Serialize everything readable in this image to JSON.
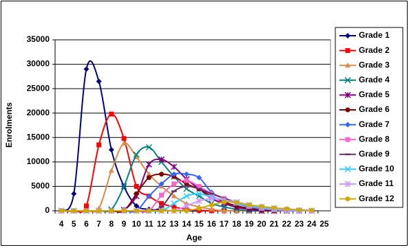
{
  "chart_data": {
    "type": "line",
    "smooth": true,
    "grid": true,
    "legend": "right",
    "x_label": "Age",
    "y_label": "Enrolments",
    "categories": [
      4,
      5,
      6,
      7,
      8,
      9,
      10,
      11,
      12,
      13,
      14,
      15,
      16,
      17,
      18,
      19,
      20,
      21,
      22,
      23,
      24,
      25
    ],
    "ylim": [
      0,
      35000
    ],
    "yticks": [
      0,
      5000,
      10000,
      15000,
      20000,
      25000,
      30000,
      35000
    ],
    "series": [
      {
        "name": "Grade 1",
        "color": "#000080",
        "marker": "diamond",
        "values": [
          0,
          3500,
          29000,
          26500,
          12500,
          5000,
          1000,
          300,
          100,
          0,
          0,
          0,
          0,
          0,
          0,
          0,
          0,
          0,
          0,
          0,
          0,
          null
        ]
      },
      {
        "name": "Grade 2",
        "color": "#ff0000",
        "marker": "square",
        "values": [
          0,
          0,
          1000,
          13500,
          19800,
          14800,
          5000,
          3000,
          1500,
          800,
          300,
          100,
          0,
          0,
          0,
          0,
          0,
          0,
          0,
          0,
          0,
          null
        ]
      },
      {
        "name": "Grade 3",
        "color": "#d98c4a",
        "marker": "triangle",
        "values": [
          0,
          0,
          0,
          500,
          8200,
          13800,
          11000,
          7500,
          5000,
          3000,
          1500,
          800,
          300,
          0,
          0,
          0,
          0,
          0,
          0,
          0,
          0,
          null
        ]
      },
      {
        "name": "Grade 4",
        "color": "#008080",
        "marker": "x",
        "values": [
          0,
          0,
          0,
          0,
          300,
          5000,
          11500,
          13000,
          10000,
          7000,
          4500,
          3000,
          1500,
          800,
          300,
          0,
          0,
          0,
          0,
          0,
          0,
          null
        ]
      },
      {
        "name": "Grade 5",
        "color": "#800080",
        "marker": "star",
        "values": [
          0,
          0,
          0,
          0,
          0,
          200,
          3000,
          9500,
          10500,
          9000,
          6500,
          4500,
          2500,
          1500,
          700,
          300,
          0,
          0,
          0,
          0,
          0,
          null
        ]
      },
      {
        "name": "Grade 6",
        "color": "#800000",
        "marker": "circle",
        "values": [
          0,
          0,
          0,
          0,
          0,
          0,
          3500,
          6800,
          7500,
          7000,
          5500,
          4500,
          3000,
          1800,
          1000,
          500,
          200,
          0,
          0,
          0,
          0,
          null
        ]
      },
      {
        "name": "Grade 7",
        "color": "#3366ff",
        "marker": "diamond",
        "values": [
          0,
          0,
          0,
          0,
          0,
          0,
          0,
          3000,
          5500,
          7500,
          7500,
          6800,
          3800,
          2500,
          1500,
          800,
          400,
          200,
          0,
          0,
          0,
          null
        ]
      },
      {
        "name": "Grade 8",
        "color": "#ff66cc",
        "marker": "square",
        "values": [
          0,
          0,
          0,
          0,
          0,
          0,
          0,
          0,
          3200,
          5500,
          6200,
          5000,
          3500,
          2500,
          1600,
          900,
          500,
          200,
          0,
          0,
          0,
          null
        ]
      },
      {
        "name": "Grade 9",
        "color": "#663366",
        "marker": "dash",
        "values": [
          0,
          0,
          0,
          0,
          0,
          0,
          0,
          0,
          800,
          4000,
          5000,
          4500,
          3500,
          2600,
          1700,
          1000,
          600,
          300,
          100,
          0,
          0,
          null
        ]
      },
      {
        "name": "Grade 10",
        "color": "#33ccff",
        "marker": "x",
        "values": [
          0,
          0,
          0,
          0,
          0,
          0,
          0,
          0,
          0,
          1500,
          3000,
          3500,
          2800,
          2200,
          1600,
          1000,
          600,
          300,
          100,
          0,
          0,
          null
        ]
      },
      {
        "name": "Grade 11",
        "color": "#cc99ff",
        "marker": "star",
        "values": [
          0,
          0,
          0,
          0,
          0,
          0,
          0,
          0,
          0,
          0,
          1000,
          2000,
          2500,
          2200,
          1800,
          1200,
          800,
          500,
          200,
          100,
          0,
          null
        ]
      },
      {
        "name": "Grade 12",
        "color": "#ccaa00",
        "marker": "circle",
        "values": [
          0,
          0,
          0,
          0,
          0,
          0,
          0,
          0,
          0,
          0,
          0,
          500,
          1200,
          1800,
          1700,
          1200,
          900,
          600,
          400,
          200,
          100,
          null
        ]
      }
    ]
  }
}
